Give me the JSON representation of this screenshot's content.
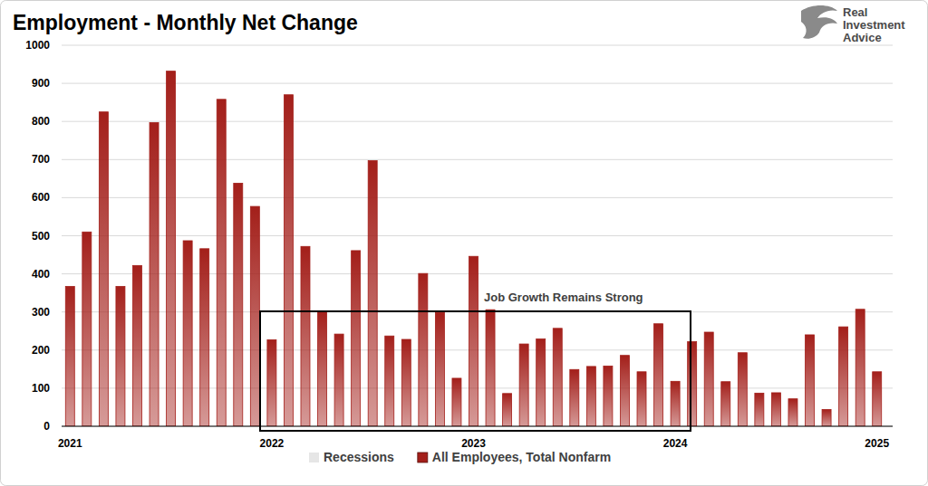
{
  "chart_data": {
    "type": "bar",
    "title": "Employment - Monthly Net Change",
    "source": "Real Investment Advice",
    "annotations": [
      "Job Growth Remains Strong"
    ],
    "categories": [
      "2021",
      null,
      null,
      null,
      null,
      null,
      null,
      null,
      null,
      null,
      null,
      null,
      "2022",
      null,
      null,
      null,
      null,
      null,
      null,
      null,
      null,
      null,
      null,
      null,
      "2023",
      null,
      null,
      null,
      null,
      null,
      null,
      null,
      null,
      null,
      null,
      null,
      "2024",
      null,
      null,
      null,
      null,
      null,
      null,
      null,
      null,
      null,
      null,
      null,
      "2025"
    ],
    "series": [
      {
        "name": "Recessions",
        "type": "area",
        "color": "#e6e6e6",
        "values": [
          null,
          null,
          null,
          null,
          null,
          null,
          null,
          null,
          null,
          null,
          null,
          null,
          null,
          null,
          null,
          null,
          null,
          null,
          null,
          null,
          null,
          null,
          null,
          null,
          null,
          null,
          null,
          null,
          null,
          null,
          null,
          null,
          null,
          null,
          null,
          null,
          null,
          null,
          null,
          null,
          null,
          null,
          null,
          null,
          null,
          null,
          null,
          null,
          null
        ]
      },
      {
        "name": "All Employees, Total Nonfarm",
        "type": "bar",
        "color": "#a31f1a",
        "values": [
          367,
          510,
          825,
          367,
          422,
          797,
          932,
          487,
          466,
          858,
          638,
          577,
          227,
          870,
          472,
          302,
          242,
          461,
          697,
          237,
          228,
          401,
          299,
          126,
          446,
          306,
          86,
          216,
          229,
          257,
          149,
          157,
          158,
          186,
          143,
          269,
          118,
          222,
          247,
          117,
          193,
          87,
          88,
          72,
          240,
          44,
          261,
          307,
          143
        ]
      }
    ],
    "ylim": [
      0,
      1000
    ],
    "yticks": [
      0,
      100,
      200,
      300,
      400,
      500,
      600,
      700,
      800,
      900,
      1000
    ],
    "grid": true
  }
}
